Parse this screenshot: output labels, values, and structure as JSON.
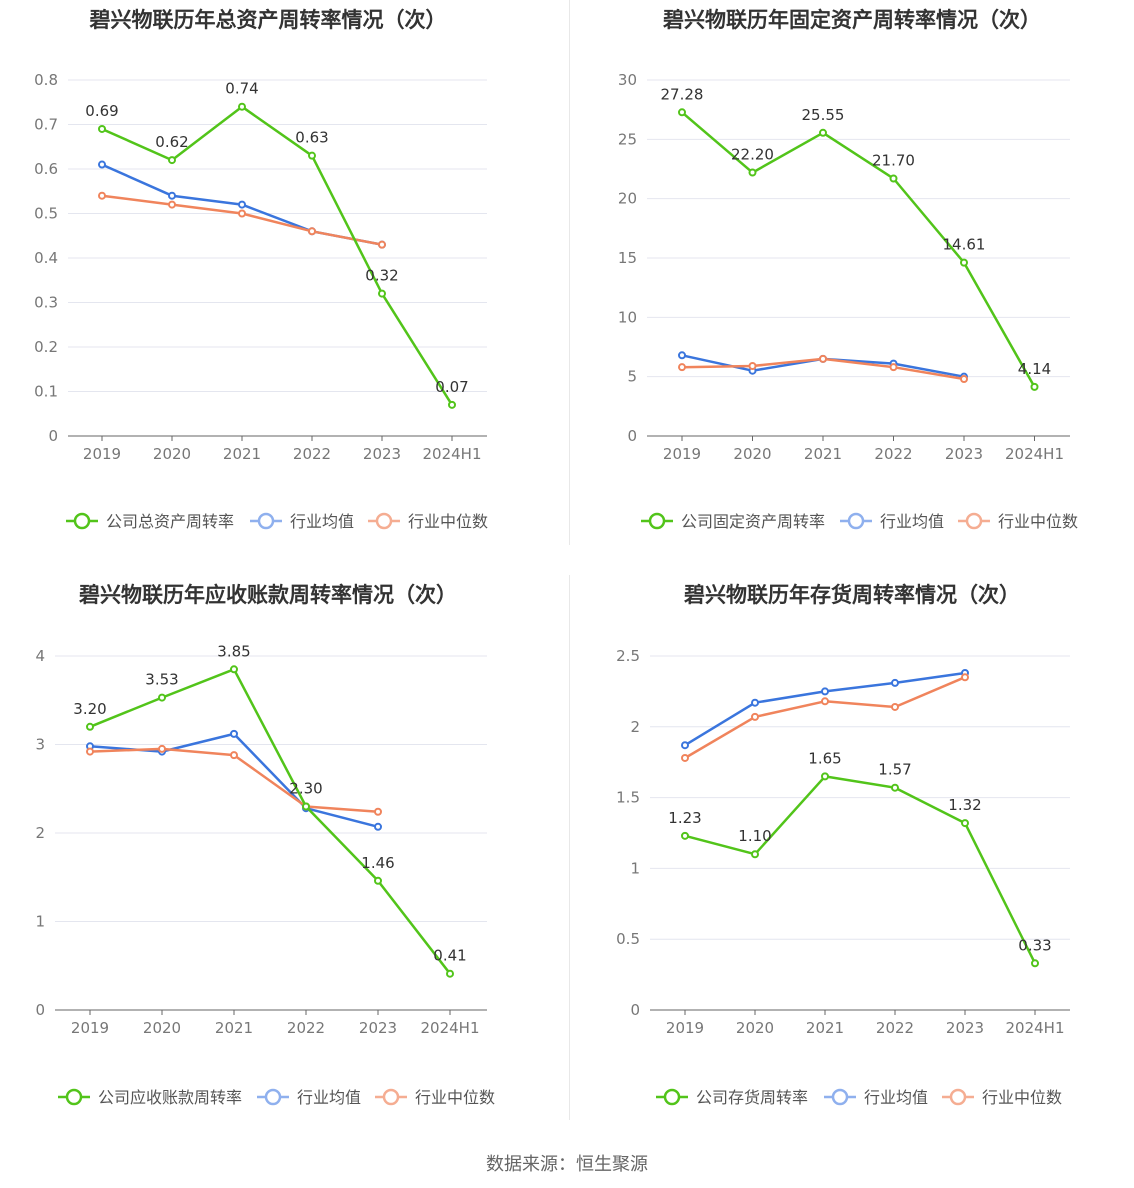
{
  "chart_data": [
    {
      "type": "line",
      "title": "碧兴物联历年总资产周转率情况（次）",
      "categories": [
        "2019",
        "2020",
        "2021",
        "2022",
        "2023",
        "2024H1"
      ],
      "ylim": [
        0,
        0.8
      ],
      "yticks": [
        "0",
        "0.1",
        "0.2",
        "0.3",
        "0.4",
        "0.5",
        "0.6",
        "0.7",
        "0.8"
      ],
      "grid": true,
      "legend_position": "bottom",
      "series": [
        {
          "name": "公司总资产周转率",
          "color": "#52c41a",
          "values": [
            0.69,
            0.62,
            0.74,
            0.63,
            0.32,
            0.07
          ],
          "labels": [
            "0.69",
            "0.62",
            "0.74",
            "0.63",
            "0.32",
            "0.07"
          ]
        },
        {
          "name": "行业均值",
          "color": "#3a75dd",
          "values": [
            0.61,
            0.54,
            0.52,
            0.46,
            0.43,
            null
          ]
        },
        {
          "name": "行业中位数",
          "color": "#f0845c",
          "values": [
            0.54,
            0.52,
            0.5,
            0.46,
            0.43,
            null
          ]
        }
      ]
    },
    {
      "type": "line",
      "title": "碧兴物联历年固定资产周转率情况（次）",
      "categories": [
        "2019",
        "2020",
        "2021",
        "2022",
        "2023",
        "2024H1"
      ],
      "ylim": [
        0,
        30
      ],
      "yticks": [
        "0",
        "5",
        "10",
        "15",
        "20",
        "25",
        "30"
      ],
      "grid": true,
      "legend_position": "bottom",
      "series": [
        {
          "name": "公司固定资产周转率",
          "color": "#52c41a",
          "values": [
            27.28,
            22.2,
            25.55,
            21.7,
            14.61,
            4.14
          ],
          "labels": [
            "27.28",
            "22.20",
            "25.55",
            "21.70",
            "14.61",
            "4.14"
          ]
        },
        {
          "name": "行业均值",
          "color": "#3a75dd",
          "values": [
            6.8,
            5.5,
            6.5,
            6.1,
            5.0,
            null
          ]
        },
        {
          "name": "行业中位数",
          "color": "#f0845c",
          "values": [
            5.8,
            5.9,
            6.5,
            5.8,
            4.8,
            null
          ]
        }
      ]
    },
    {
      "type": "line",
      "title": "碧兴物联历年应收账款周转率情况（次）",
      "categories": [
        "2019",
        "2020",
        "2021",
        "2022",
        "2023",
        "2024H1"
      ],
      "ylim": [
        0,
        4
      ],
      "yticks": [
        "0",
        "1",
        "2",
        "3",
        "4"
      ],
      "grid": true,
      "legend_position": "bottom",
      "series": [
        {
          "name": "公司应收账款周转率",
          "color": "#52c41a",
          "values": [
            3.2,
            3.53,
            3.85,
            2.3,
            1.46,
            0.41
          ],
          "labels": [
            "3.20",
            "3.53",
            "3.85",
            "2.30",
            "1.46",
            "0.41"
          ]
        },
        {
          "name": "行业均值",
          "color": "#3a75dd",
          "values": [
            2.98,
            2.92,
            3.12,
            2.28,
            2.07,
            null
          ]
        },
        {
          "name": "行业中位数",
          "color": "#f0845c",
          "values": [
            2.92,
            2.95,
            2.88,
            2.3,
            2.24,
            null
          ]
        }
      ]
    },
    {
      "type": "line",
      "title": "碧兴物联历年存货周转率情况（次）",
      "categories": [
        "2019",
        "2020",
        "2021",
        "2022",
        "2023",
        "2024H1"
      ],
      "ylim": [
        0,
        2.5
      ],
      "yticks": [
        "0",
        "0.5",
        "1",
        "1.5",
        "2",
        "2.5"
      ],
      "grid": true,
      "legend_position": "bottom",
      "series": [
        {
          "name": "公司存货周转率",
          "color": "#52c41a",
          "values": [
            1.23,
            1.1,
            1.65,
            1.57,
            1.32,
            0.33
          ],
          "labels": [
            "1.23",
            "1.10",
            "1.65",
            "1.57",
            "1.32",
            "0.33"
          ]
        },
        {
          "name": "行业均值",
          "color": "#3a75dd",
          "values": [
            1.87,
            2.17,
            2.25,
            2.31,
            2.38,
            null
          ]
        },
        {
          "name": "行业中位数",
          "color": "#f0845c",
          "values": [
            1.78,
            2.07,
            2.18,
            2.14,
            2.35,
            null
          ]
        }
      ]
    }
  ],
  "source": "数据来源：恒生聚源"
}
